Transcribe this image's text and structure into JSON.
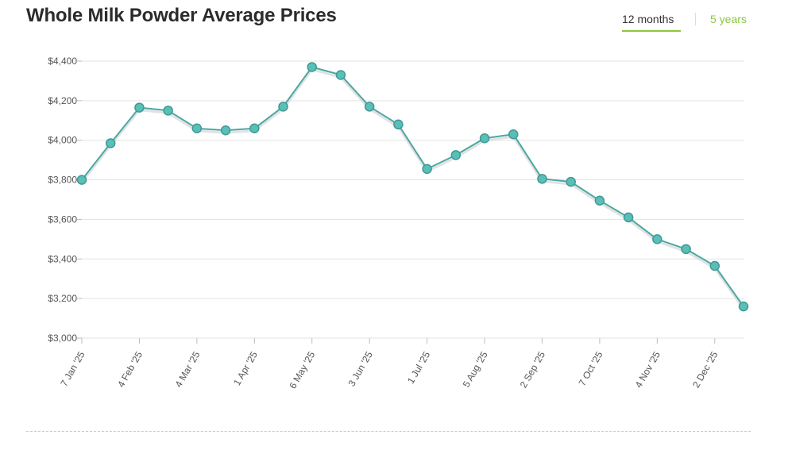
{
  "header": {
    "title": "Whole Milk Powder Average Prices",
    "tabs": [
      {
        "label": "12 months",
        "active": true
      },
      {
        "label": "5 years",
        "active": false
      }
    ]
  },
  "colors": {
    "accent": "#8cc63f",
    "series": "#4aa8a3",
    "marker_fill": "#5bbfb8",
    "grid": "#e3e3e3",
    "text": "#333333"
  },
  "chart_data": {
    "type": "line",
    "title": "Whole Milk Powder Average Prices",
    "xlabel": "",
    "ylabel": "",
    "ylim": [
      3000,
      4400
    ],
    "yticks": [
      3000,
      3200,
      3400,
      3600,
      3800,
      4000,
      4200,
      4400
    ],
    "ytick_labels": [
      "$3,000",
      "$3,200",
      "$3,400",
      "$3,600",
      "$3,800",
      "$4,000",
      "$4,200",
      "$4,400"
    ],
    "xtick_labels": [
      "7 Jan '25",
      "4 Feb '25",
      "4 Mar '25",
      "1 Apr '25",
      "6 May '25",
      "3 Jun '25",
      "1 Jul '25",
      "5 Aug '25",
      "2 Sep '25",
      "7 Oct '25",
      "4 Nov '25",
      "2 Dec '25"
    ],
    "xtick_point_index": [
      0,
      2,
      4,
      6,
      8,
      10,
      12,
      14,
      16,
      18,
      20,
      22
    ],
    "grid": true,
    "legend": "none",
    "series": [
      {
        "name": "Whole Milk Powder",
        "values": [
          3800,
          3985,
          4165,
          4150,
          4060,
          4050,
          4060,
          4170,
          4370,
          4330,
          4170,
          4080,
          3855,
          3925,
          4010,
          4030,
          3805,
          3790,
          3695,
          3610,
          3500,
          3450,
          3365,
          3160
        ]
      }
    ]
  }
}
